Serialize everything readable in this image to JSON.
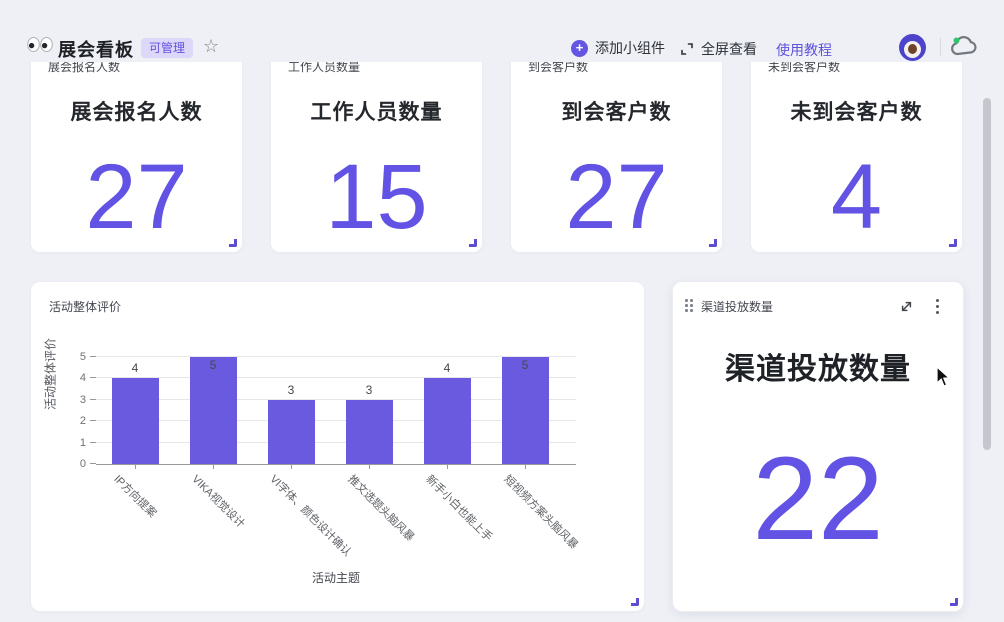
{
  "header": {
    "title": "展会看板",
    "badge": "可管理",
    "add_widget_label": "添加小组件",
    "fullscreen_label": "全屏查看",
    "tutorial_label": "使用教程"
  },
  "stat_cards": [
    {
      "header_label": "展会报名人数",
      "title": "展会报名人数",
      "value": "27"
    },
    {
      "header_label": "工作人员数量",
      "title": "工作人员数量",
      "value": "15"
    },
    {
      "header_label": "到会客户数",
      "title": "到会客户数",
      "value": "27"
    },
    {
      "header_label": "未到会客户数",
      "title": "未到会客户数",
      "value": "4"
    }
  ],
  "chart_card": {
    "header_label": "活动整体评价"
  },
  "chart_data": {
    "type": "bar",
    "categories": [
      "IP方向提案",
      "VIKA视觉设计",
      "VI字体、颜色设计确认",
      "推文选题头脑风暴",
      "新手小白也能上手",
      "短视频方案头脑风暴"
    ],
    "values": [
      4,
      5,
      3,
      3,
      4,
      5
    ],
    "title": "",
    "xlabel": "活动主题",
    "ylabel": "活动整体评价",
    "ylim": [
      0,
      5
    ],
    "yticks": [
      0,
      1,
      2,
      3,
      4,
      5
    ],
    "bar_color": "#6a5ae0",
    "grid": true,
    "legend": false,
    "value_labels": true
  },
  "channel_card": {
    "header_label": "渠道投放数量",
    "title": "渠道投放数量",
    "value": "22"
  },
  "colors": {
    "accent_purple": "#6253e4",
    "bar_purple": "#6a5ae0",
    "badge_bg": "#ddd8f9",
    "page_bg": "#eef0f6",
    "card_bg": "#ffffff",
    "sync_green": "#33c46b"
  }
}
